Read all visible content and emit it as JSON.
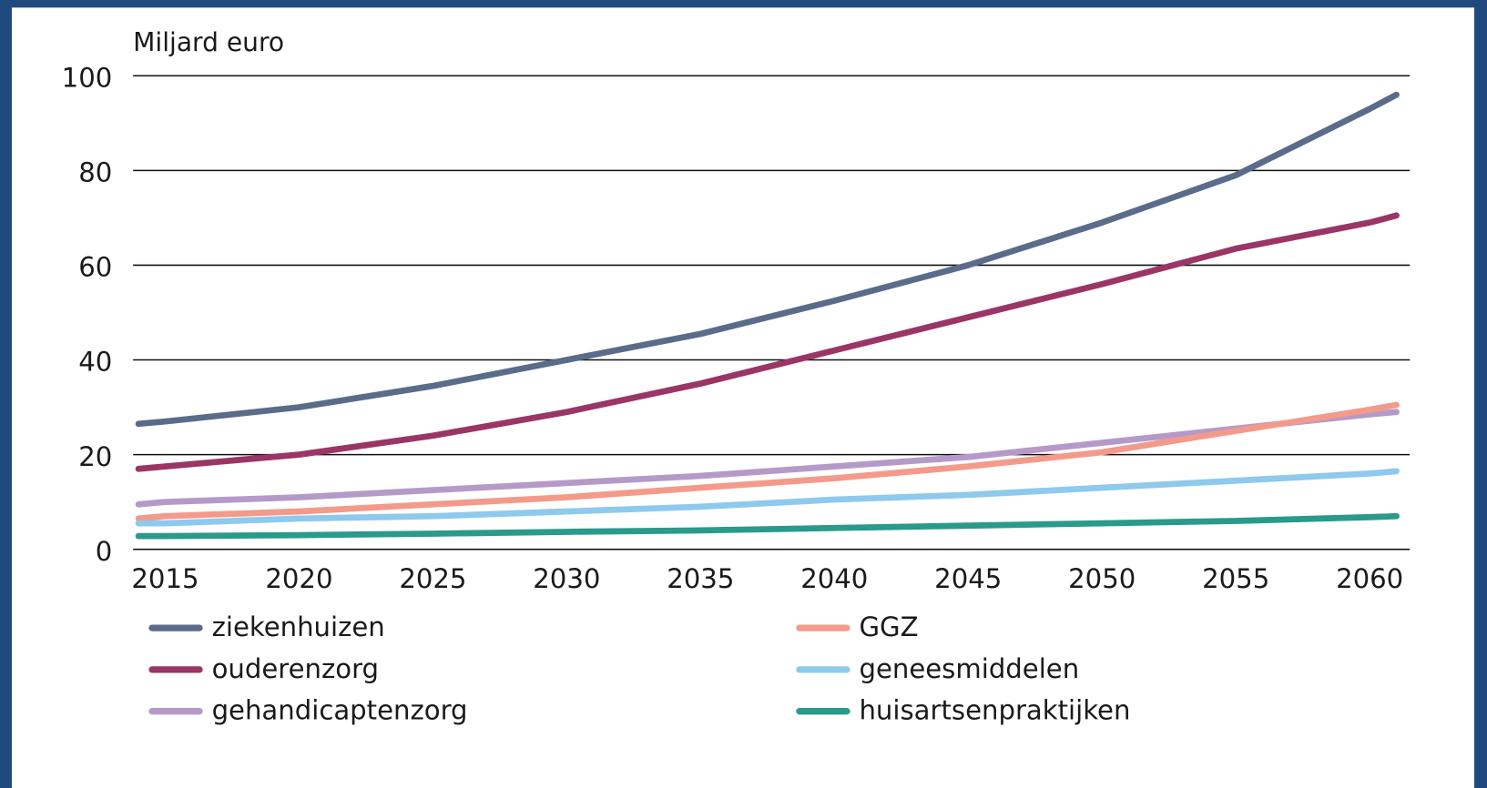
{
  "chart_data": {
    "type": "line",
    "y_axis_label": "Miljard euro",
    "x": [
      2014,
      2015,
      2020,
      2025,
      2030,
      2035,
      2040,
      2045,
      2050,
      2055,
      2060,
      2061
    ],
    "xlim": [
      2013.8,
      2061.5
    ],
    "xticks": [
      2015,
      2020,
      2025,
      2030,
      2035,
      2040,
      2045,
      2050,
      2055,
      2060
    ],
    "ylim": [
      0,
      100
    ],
    "yticks": [
      0,
      20,
      40,
      60,
      80,
      100
    ],
    "grid": true,
    "series": [
      {
        "name": "ziekenhuizen",
        "color": "#5b6b8a",
        "values": [
          26.5,
          27,
          30,
          34.5,
          40,
          45.5,
          52.5,
          60,
          69,
          79,
          93,
          96
        ]
      },
      {
        "name": "ouderenzorg",
        "color": "#9b3566",
        "values": [
          17,
          17.5,
          20,
          24,
          29,
          35,
          42,
          49,
          56,
          63.5,
          69,
          70.5
        ]
      },
      {
        "name": "gehandicaptenzorg",
        "color": "#b59ac9",
        "values": [
          9.5,
          10,
          11,
          12.5,
          14,
          15.5,
          17.5,
          19.5,
          22.5,
          25.5,
          28.5,
          29
        ]
      },
      {
        "name": "GGZ",
        "color": "#f49a8b",
        "values": [
          6.5,
          7,
          8,
          9.5,
          11,
          13,
          15,
          17.5,
          20.5,
          25,
          29.5,
          30.5
        ]
      },
      {
        "name": "geneesmiddelen",
        "color": "#8ec9ee",
        "values": [
          5.5,
          5.5,
          6.5,
          7,
          8,
          9,
          10.5,
          11.5,
          13,
          14.5,
          16,
          16.5
        ]
      },
      {
        "name": "huisartsenpraktijken",
        "color": "#2a9a8b",
        "values": [
          2.8,
          2.8,
          3,
          3.3,
          3.7,
          4,
          4.5,
          5,
          5.5,
          6,
          6.8,
          7
        ]
      }
    ]
  }
}
